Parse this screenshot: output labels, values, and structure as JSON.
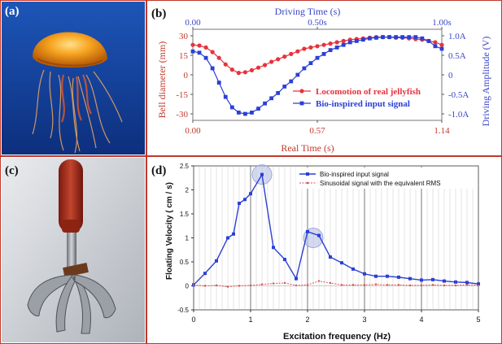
{
  "panels": {
    "a": {
      "label": "(a)"
    },
    "b": {
      "label": "(b)"
    },
    "c": {
      "label": "(c)"
    },
    "d": {
      "label": "(d)"
    }
  },
  "chart_data": [
    {
      "id": "b",
      "type": "line",
      "xlabel": "Real Time (s)",
      "x_ticks": [
        "0.00",
        "0.57",
        "1.14"
      ],
      "x_range": [
        0,
        1.14
      ],
      "x2label": "Driving Time (s)",
      "x2_ticks": [
        "0.00",
        "0.50s",
        "1.00s"
      ],
      "ylabel": "Bell diameter (mm)",
      "y_ticks": [
        "30",
        "15",
        "0",
        "-15",
        "-30"
      ],
      "y_range": [
        -35,
        35
      ],
      "y2label": "Driving Amplitude (V)",
      "y2_ticks": [
        "1.0A",
        "0.5A",
        "0",
        "-0.5A",
        "-1.0A"
      ],
      "grid": false,
      "legend_position": "bottom-right",
      "colors": {
        "real": "#e8323c",
        "bio": "#2b3fd6",
        "axis_left": "#c0392b",
        "axis_right": "#3a46c8"
      },
      "series": [
        {
          "name": "Locomotion of real jellyfish",
          "marker": "circle",
          "color": "#e8323c",
          "x": [
            0.0,
            0.03,
            0.06,
            0.09,
            0.12,
            0.15,
            0.18,
            0.21,
            0.24,
            0.27,
            0.3,
            0.33,
            0.36,
            0.39,
            0.42,
            0.45,
            0.48,
            0.51,
            0.54,
            0.57,
            0.6,
            0.63,
            0.66,
            0.69,
            0.72,
            0.75,
            0.78,
            0.81,
            0.84,
            0.87,
            0.9,
            0.93,
            0.96,
            0.99,
            1.02,
            1.05,
            1.08,
            1.11,
            1.14
          ],
          "y": [
            23,
            22.5,
            21,
            17.5,
            13,
            8,
            4,
            1.5,
            2,
            3.5,
            5.5,
            7.5,
            10,
            12,
            14,
            16,
            18,
            20,
            21,
            22,
            23,
            24,
            25,
            26,
            27,
            27.5,
            28,
            28.5,
            29,
            29,
            29,
            28.5,
            28.5,
            28,
            27.5,
            27,
            26,
            25,
            23
          ]
        },
        {
          "name": "Bio-inspired input signal",
          "marker": "square",
          "color": "#2b3fd6",
          "x": [
            0.0,
            0.03,
            0.06,
            0.09,
            0.12,
            0.15,
            0.18,
            0.21,
            0.24,
            0.27,
            0.3,
            0.33,
            0.36,
            0.39,
            0.42,
            0.45,
            0.48,
            0.51,
            0.54,
            0.57,
            0.6,
            0.63,
            0.66,
            0.69,
            0.72,
            0.75,
            0.78,
            0.81,
            0.84,
            0.87,
            0.9,
            0.93,
            0.96,
            0.99,
            1.02,
            1.05,
            1.08,
            1.11,
            1.14
          ],
          "y": [
            18,
            17,
            13,
            5,
            -6,
            -17,
            -25,
            -29,
            -30,
            -29,
            -26,
            -22,
            -18,
            -14,
            -9,
            -5,
            0,
            5,
            9,
            13,
            16,
            19,
            21,
            23,
            25,
            26,
            27,
            28,
            28.5,
            29,
            29,
            29,
            29,
            29,
            29,
            28,
            26,
            22,
            20
          ]
        }
      ]
    },
    {
      "id": "d",
      "type": "line",
      "xlabel": "Excitation frequency (Hz)",
      "ylabel": "Floating Velocity ( cm / s)",
      "x_range": [
        0,
        5
      ],
      "x_ticks": [
        "0",
        "1",
        "2",
        "3",
        "4",
        "5"
      ],
      "y_range": [
        -0.5,
        2.5
      ],
      "y_ticks": [
        "2.5",
        "2",
        "1.5",
        "1",
        "0.5",
        "0",
        "-0.5"
      ],
      "grid": true,
      "legend_position": "top-right",
      "colors": {
        "bio": "#2b3fd6",
        "sine": "#d9534f",
        "highlight": "#b8c0e6"
      },
      "highlights_x": [
        1.2,
        2.1
      ],
      "series": [
        {
          "name": "Bio-inspired input signal",
          "marker": "square",
          "color": "#2b3fd6",
          "x": [
            0,
            0.2,
            0.4,
            0.6,
            0.7,
            0.8,
            0.9,
            1.0,
            1.2,
            1.4,
            1.6,
            1.8,
            2.0,
            2.2,
            2.4,
            2.6,
            2.8,
            3.0,
            3.2,
            3.4,
            3.6,
            3.8,
            4.0,
            4.2,
            4.4,
            4.6,
            4.8,
            5.0
          ],
          "y": [
            0.02,
            0.26,
            0.52,
            1.0,
            1.08,
            1.72,
            1.8,
            1.92,
            2.32,
            0.8,
            0.55,
            0.15,
            1.13,
            1.05,
            0.6,
            0.48,
            0.35,
            0.25,
            0.2,
            0.2,
            0.18,
            0.15,
            0.12,
            0.13,
            0.1,
            0.08,
            0.07,
            0.04
          ]
        },
        {
          "name": "Sinusoidal signal with the equivalent RMS",
          "marker": "dot",
          "color": "#d9534f",
          "x": [
            0,
            0.2,
            0.4,
            0.6,
            0.8,
            1.0,
            1.2,
            1.4,
            1.6,
            1.8,
            2.0,
            2.2,
            2.4,
            2.6,
            2.8,
            3.0,
            3.2,
            3.4,
            3.6,
            3.8,
            4.0,
            4.2,
            4.4,
            4.6,
            4.8,
            5.0
          ],
          "y": [
            0.02,
            0.0,
            0.01,
            -0.02,
            0.0,
            0.01,
            0.03,
            0.05,
            0.06,
            0.01,
            0.02,
            0.1,
            0.06,
            0.02,
            0.02,
            0.02,
            0.03,
            0.02,
            0.02,
            0.01,
            0.01,
            0.02,
            0.01,
            0.01,
            0.02,
            0.01
          ]
        }
      ]
    }
  ]
}
